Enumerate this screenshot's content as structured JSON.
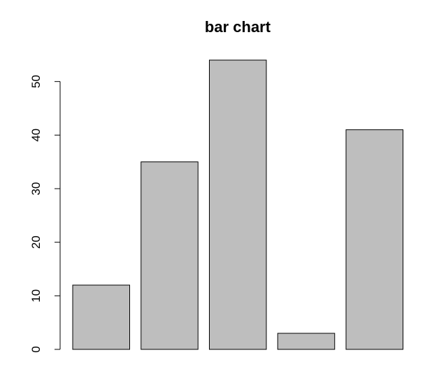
{
  "chart_data": {
    "type": "bar",
    "title": "bar chart",
    "xlabel": "",
    "ylabel": "",
    "categories": [
      "",
      "",
      "",
      "",
      ""
    ],
    "values": [
      12,
      35,
      54,
      3,
      41
    ],
    "ylim": [
      0,
      54
    ],
    "yticks": [
      0,
      10,
      20,
      30,
      40,
      50
    ],
    "ytick_labels": [
      "0",
      "10",
      "20",
      "30",
      "40",
      "50"
    ],
    "grid": false,
    "legend": "none",
    "bar_color": "#bebebe",
    "edge_color": "#000000"
  }
}
